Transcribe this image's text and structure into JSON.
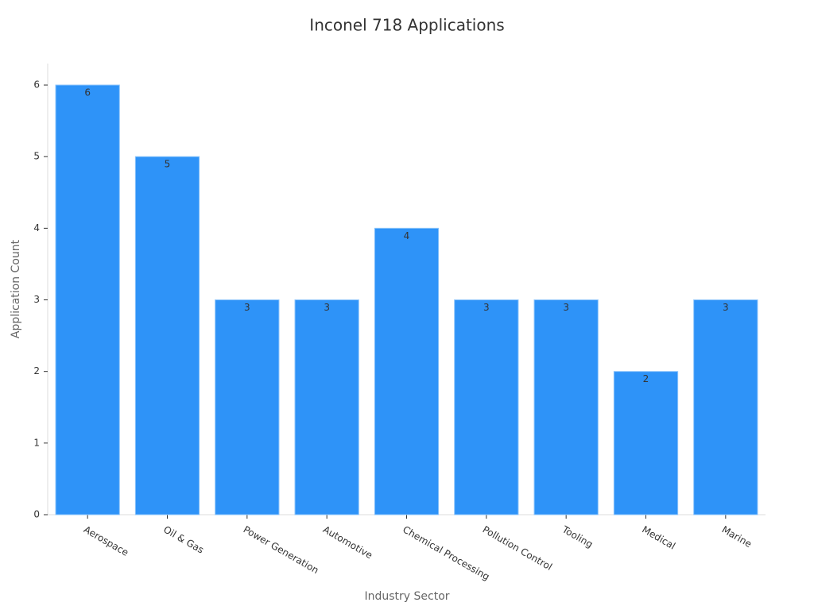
{
  "chart_data": {
    "type": "bar",
    "title": "Inconel 718 Applications",
    "x_label": "Industry Sector",
    "y_label": "Application Count",
    "categories": [
      "Aerospace",
      "Oil & Gas",
      "Power Generation",
      "Automotive",
      "Chemical Processing",
      "Pollution Control",
      "Tooling",
      "Medical",
      "Marine"
    ],
    "values": [
      6,
      5,
      3,
      3,
      4,
      3,
      3,
      2,
      3
    ],
    "color": "#2e93f8",
    "ylim": [
      0,
      6.3
    ],
    "yticks": [
      0,
      1,
      2,
      3,
      4,
      5,
      6
    ],
    "grid": false
  }
}
